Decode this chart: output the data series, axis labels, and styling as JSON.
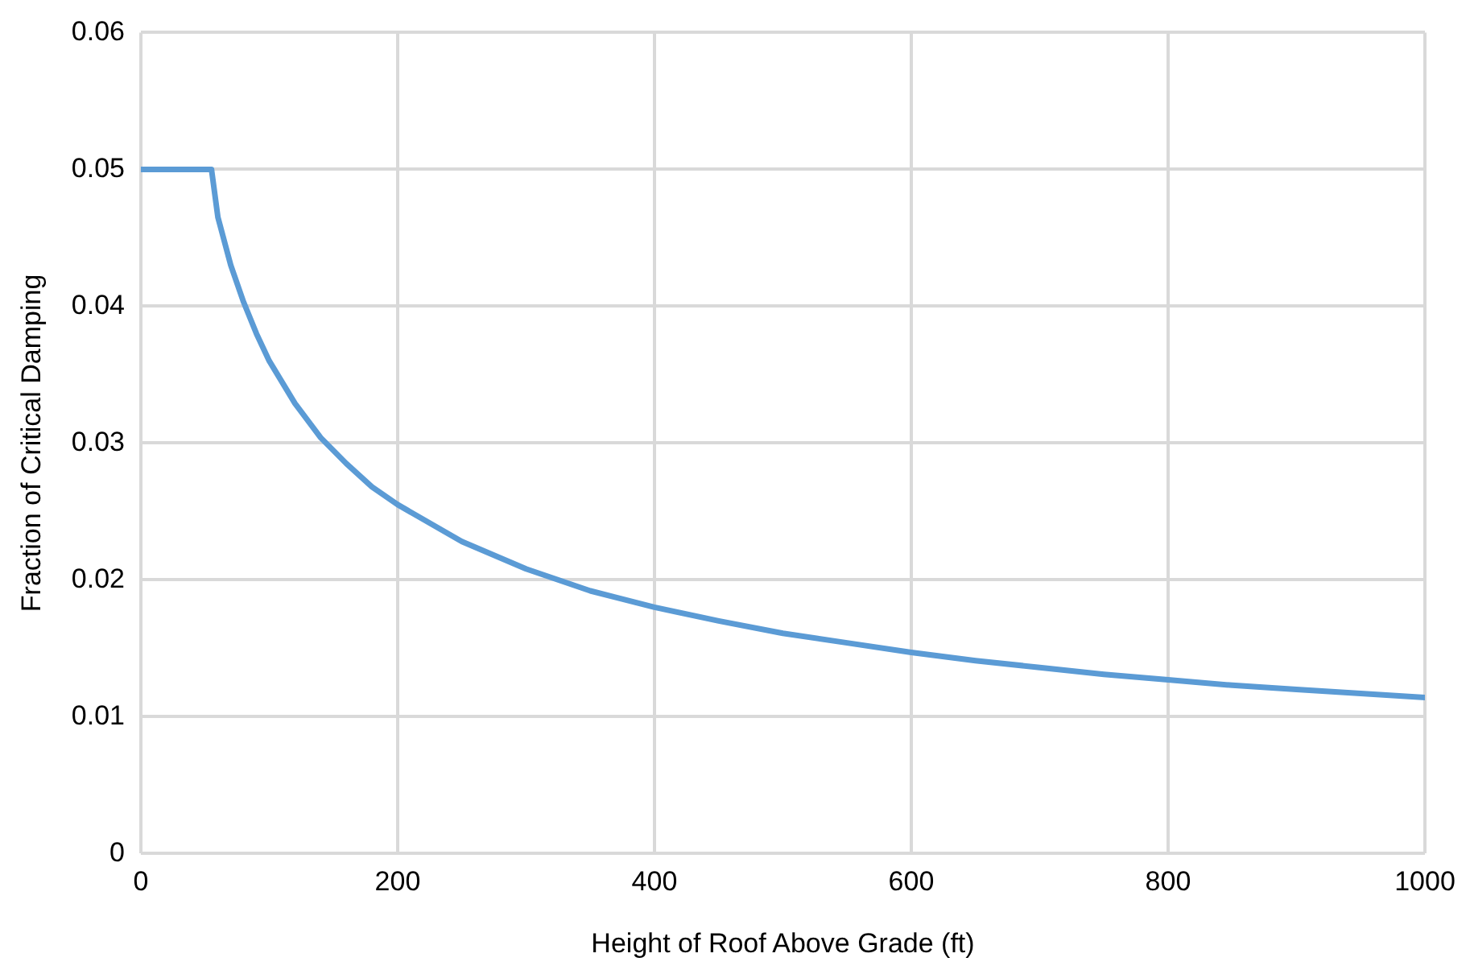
{
  "chart_data": {
    "type": "line",
    "xlabel": "Height of Roof Above Grade (ft)",
    "ylabel": "Fraction of Critical Damping",
    "series": [
      {
        "color": "#5b9bd5",
        "x": [
          0,
          55,
          60,
          70,
          80,
          90,
          100,
          120,
          140,
          160,
          180,
          200,
          250,
          300,
          350,
          400,
          450,
          500,
          550,
          600,
          650,
          700,
          750,
          800,
          850,
          900,
          950,
          1000
        ],
        "values": [
          0.05,
          0.05,
          0.0465,
          0.043,
          0.0403,
          0.038,
          0.036,
          0.0329,
          0.0304,
          0.0285,
          0.0268,
          0.0255,
          0.0228,
          0.0208,
          0.0192,
          0.018,
          0.017,
          0.0161,
          0.0154,
          0.0147,
          0.0141,
          0.0136,
          0.0131,
          0.0127,
          0.0123,
          0.012,
          0.0117,
          0.0114
        ]
      }
    ],
    "xlim": [
      0,
      1000
    ],
    "xticks": [
      0,
      200,
      400,
      600,
      800,
      1000
    ],
    "ylim": [
      0,
      0.06
    ],
    "yticks": [
      0,
      0.01,
      0.02,
      0.03,
      0.04,
      0.05,
      0.06
    ],
    "grid": true,
    "legend": false,
    "marker": "none",
    "line_style": "solid"
  }
}
